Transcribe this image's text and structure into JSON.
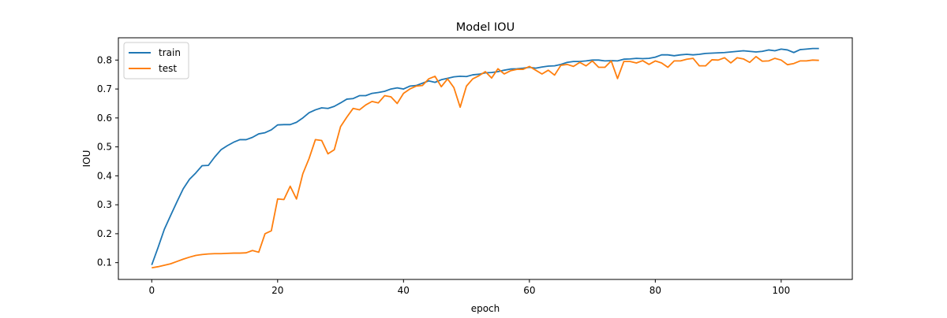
{
  "chart_data": {
    "type": "line",
    "title": "Model IOU",
    "xlabel": "epoch",
    "ylabel": "IOU",
    "xlim": [
      -5.3,
      111.3
    ],
    "ylim": [
      0.042,
      0.877
    ],
    "xticks": [
      0,
      20,
      40,
      60,
      80,
      100
    ],
    "yticks": [
      0.1,
      0.2,
      0.3,
      0.4,
      0.5,
      0.6,
      0.7,
      0.8
    ],
    "xtick_labels": [
      "0",
      "20",
      "40",
      "60",
      "80",
      "100"
    ],
    "ytick_labels": [
      "0.1",
      "0.2",
      "0.3",
      "0.4",
      "0.5",
      "0.6",
      "0.7",
      "0.8"
    ],
    "grid": false,
    "legend_position": "upper-left",
    "x": [
      0,
      1,
      2,
      3,
      4,
      5,
      6,
      7,
      8,
      9,
      10,
      11,
      12,
      13,
      14,
      15,
      16,
      17,
      18,
      19,
      20,
      21,
      22,
      23,
      24,
      25,
      26,
      27,
      28,
      29,
      30,
      31,
      32,
      33,
      34,
      35,
      36,
      37,
      38,
      39,
      40,
      41,
      42,
      43,
      44,
      45,
      46,
      47,
      48,
      49,
      50,
      51,
      52,
      53,
      54,
      55,
      56,
      57,
      58,
      59,
      60,
      61,
      62,
      63,
      64,
      65,
      66,
      67,
      68,
      69,
      70,
      71,
      72,
      73,
      74,
      75,
      76,
      77,
      78,
      79,
      80,
      81,
      82,
      83,
      84,
      85,
      86,
      87,
      88,
      89,
      90,
      91,
      92,
      93,
      94,
      95,
      96,
      97,
      98,
      99,
      100,
      101,
      102,
      103,
      104,
      105,
      106
    ],
    "series": [
      {
        "name": "train",
        "color": "#1f77b4",
        "values": [
          0.092,
          0.152,
          0.215,
          0.263,
          0.31,
          0.355,
          0.388,
          0.41,
          0.435,
          0.436,
          0.465,
          0.49,
          0.504,
          0.516,
          0.525,
          0.525,
          0.533,
          0.545,
          0.549,
          0.559,
          0.576,
          0.577,
          0.577,
          0.585,
          0.6,
          0.618,
          0.628,
          0.635,
          0.633,
          0.64,
          0.652,
          0.665,
          0.667,
          0.677,
          0.677,
          0.685,
          0.688,
          0.692,
          0.7,
          0.704,
          0.7,
          0.71,
          0.712,
          0.72,
          0.728,
          0.723,
          0.732,
          0.737,
          0.742,
          0.744,
          0.743,
          0.749,
          0.751,
          0.756,
          0.757,
          0.76,
          0.765,
          0.769,
          0.77,
          0.772,
          0.775,
          0.772,
          0.776,
          0.779,
          0.78,
          0.785,
          0.792,
          0.795,
          0.795,
          0.797,
          0.8,
          0.8,
          0.797,
          0.798,
          0.797,
          0.803,
          0.804,
          0.806,
          0.805,
          0.806,
          0.81,
          0.818,
          0.818,
          0.815,
          0.818,
          0.82,
          0.818,
          0.82,
          0.823,
          0.824,
          0.825,
          0.826,
          0.828,
          0.83,
          0.832,
          0.83,
          0.828,
          0.83,
          0.835,
          0.832,
          0.838,
          0.835,
          0.826,
          0.836,
          0.838,
          0.84,
          0.84
        ]
      },
      {
        "name": "test",
        "color": "#ff7f0e",
        "values": [
          0.082,
          0.086,
          0.091,
          0.096,
          0.104,
          0.112,
          0.119,
          0.125,
          0.128,
          0.13,
          0.131,
          0.131,
          0.132,
          0.133,
          0.133,
          0.134,
          0.142,
          0.136,
          0.2,
          0.21,
          0.32,
          0.318,
          0.364,
          0.32,
          0.407,
          0.46,
          0.525,
          0.522,
          0.476,
          0.49,
          0.57,
          0.603,
          0.633,
          0.628,
          0.645,
          0.657,
          0.652,
          0.677,
          0.673,
          0.65,
          0.685,
          0.7,
          0.71,
          0.712,
          0.735,
          0.744,
          0.708,
          0.735,
          0.705,
          0.637,
          0.71,
          0.735,
          0.746,
          0.76,
          0.738,
          0.77,
          0.752,
          0.763,
          0.768,
          0.768,
          0.778,
          0.765,
          0.752,
          0.765,
          0.748,
          0.782,
          0.785,
          0.778,
          0.792,
          0.78,
          0.797,
          0.775,
          0.775,
          0.797,
          0.736,
          0.795,
          0.795,
          0.79,
          0.798,
          0.785,
          0.797,
          0.79,
          0.775,
          0.797,
          0.797,
          0.803,
          0.806,
          0.78,
          0.78,
          0.801,
          0.8,
          0.808,
          0.79,
          0.808,
          0.804,
          0.792,
          0.812,
          0.796,
          0.797,
          0.806,
          0.8,
          0.784,
          0.788,
          0.797,
          0.797,
          0.8,
          0.799
        ]
      }
    ]
  }
}
